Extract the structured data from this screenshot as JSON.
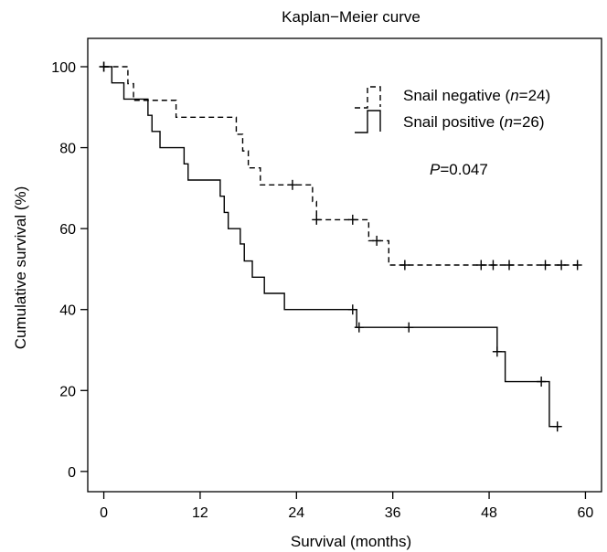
{
  "chart_data": {
    "type": "line",
    "subtype": "kaplan-meier",
    "title": "Kaplan−Meier curve",
    "xlabel": "Survival (months)",
    "ylabel": "Cumulative survival (%)",
    "xlim": [
      -2,
      62
    ],
    "ylim": [
      -5,
      107
    ],
    "xticks": [
      0,
      12,
      24,
      36,
      48,
      60
    ],
    "yticks": [
      0,
      20,
      40,
      60,
      80,
      100
    ],
    "grid": false,
    "legend_position": "top-right",
    "annotation": {
      "prefix": "P",
      "rest": "=0.047"
    },
    "series": [
      {
        "name": "Snail negative (n=24)",
        "legend_parts": [
          "Snail negative (",
          "n",
          "=24)"
        ],
        "style": "dashed",
        "steps": [
          [
            0,
            100
          ],
          [
            3,
            95.8
          ],
          [
            3.7,
            91.7
          ],
          [
            9,
            87.5
          ],
          [
            16.5,
            83.3
          ],
          [
            17.3,
            79.2
          ],
          [
            18,
            75
          ],
          [
            19.5,
            70.8
          ],
          [
            26,
            66.7
          ],
          [
            26.5,
            62.2
          ],
          [
            33,
            57
          ],
          [
            35.5,
            51
          ]
        ],
        "end_x": 59,
        "censored": [
          [
            0,
            100
          ],
          [
            23.5,
            70.8
          ],
          [
            26.5,
            62.2
          ],
          [
            31,
            62.2
          ],
          [
            34,
            57
          ],
          [
            37.5,
            51
          ],
          [
            47,
            51
          ],
          [
            48.5,
            51
          ],
          [
            50.5,
            51
          ],
          [
            55,
            51
          ],
          [
            57,
            51
          ],
          [
            59,
            51
          ]
        ]
      },
      {
        "name": "Snail positive (n=26)",
        "legend_parts": [
          "Snail positive (",
          "n",
          "=26)"
        ],
        "style": "solid",
        "steps": [
          [
            0,
            100
          ],
          [
            1,
            96
          ],
          [
            2.5,
            92
          ],
          [
            5.5,
            88
          ],
          [
            6,
            84
          ],
          [
            7,
            80
          ],
          [
            10,
            76
          ],
          [
            10.5,
            72
          ],
          [
            14.5,
            68
          ],
          [
            15,
            64
          ],
          [
            15.5,
            60
          ],
          [
            17,
            56.2
          ],
          [
            17.5,
            52
          ],
          [
            18.5,
            48
          ],
          [
            20,
            44
          ],
          [
            22.5,
            40
          ],
          [
            31.5,
            35.6
          ],
          [
            49,
            29.6
          ],
          [
            50,
            22.2
          ],
          [
            55.5,
            11.1
          ]
        ],
        "end_x": 56.8,
        "censored": [
          [
            0,
            100
          ],
          [
            31,
            40
          ],
          [
            31.8,
            35.6
          ],
          [
            38,
            35.6
          ],
          [
            49,
            29.6
          ],
          [
            54.5,
            22.2
          ],
          [
            56.5,
            11.1
          ]
        ]
      }
    ]
  }
}
